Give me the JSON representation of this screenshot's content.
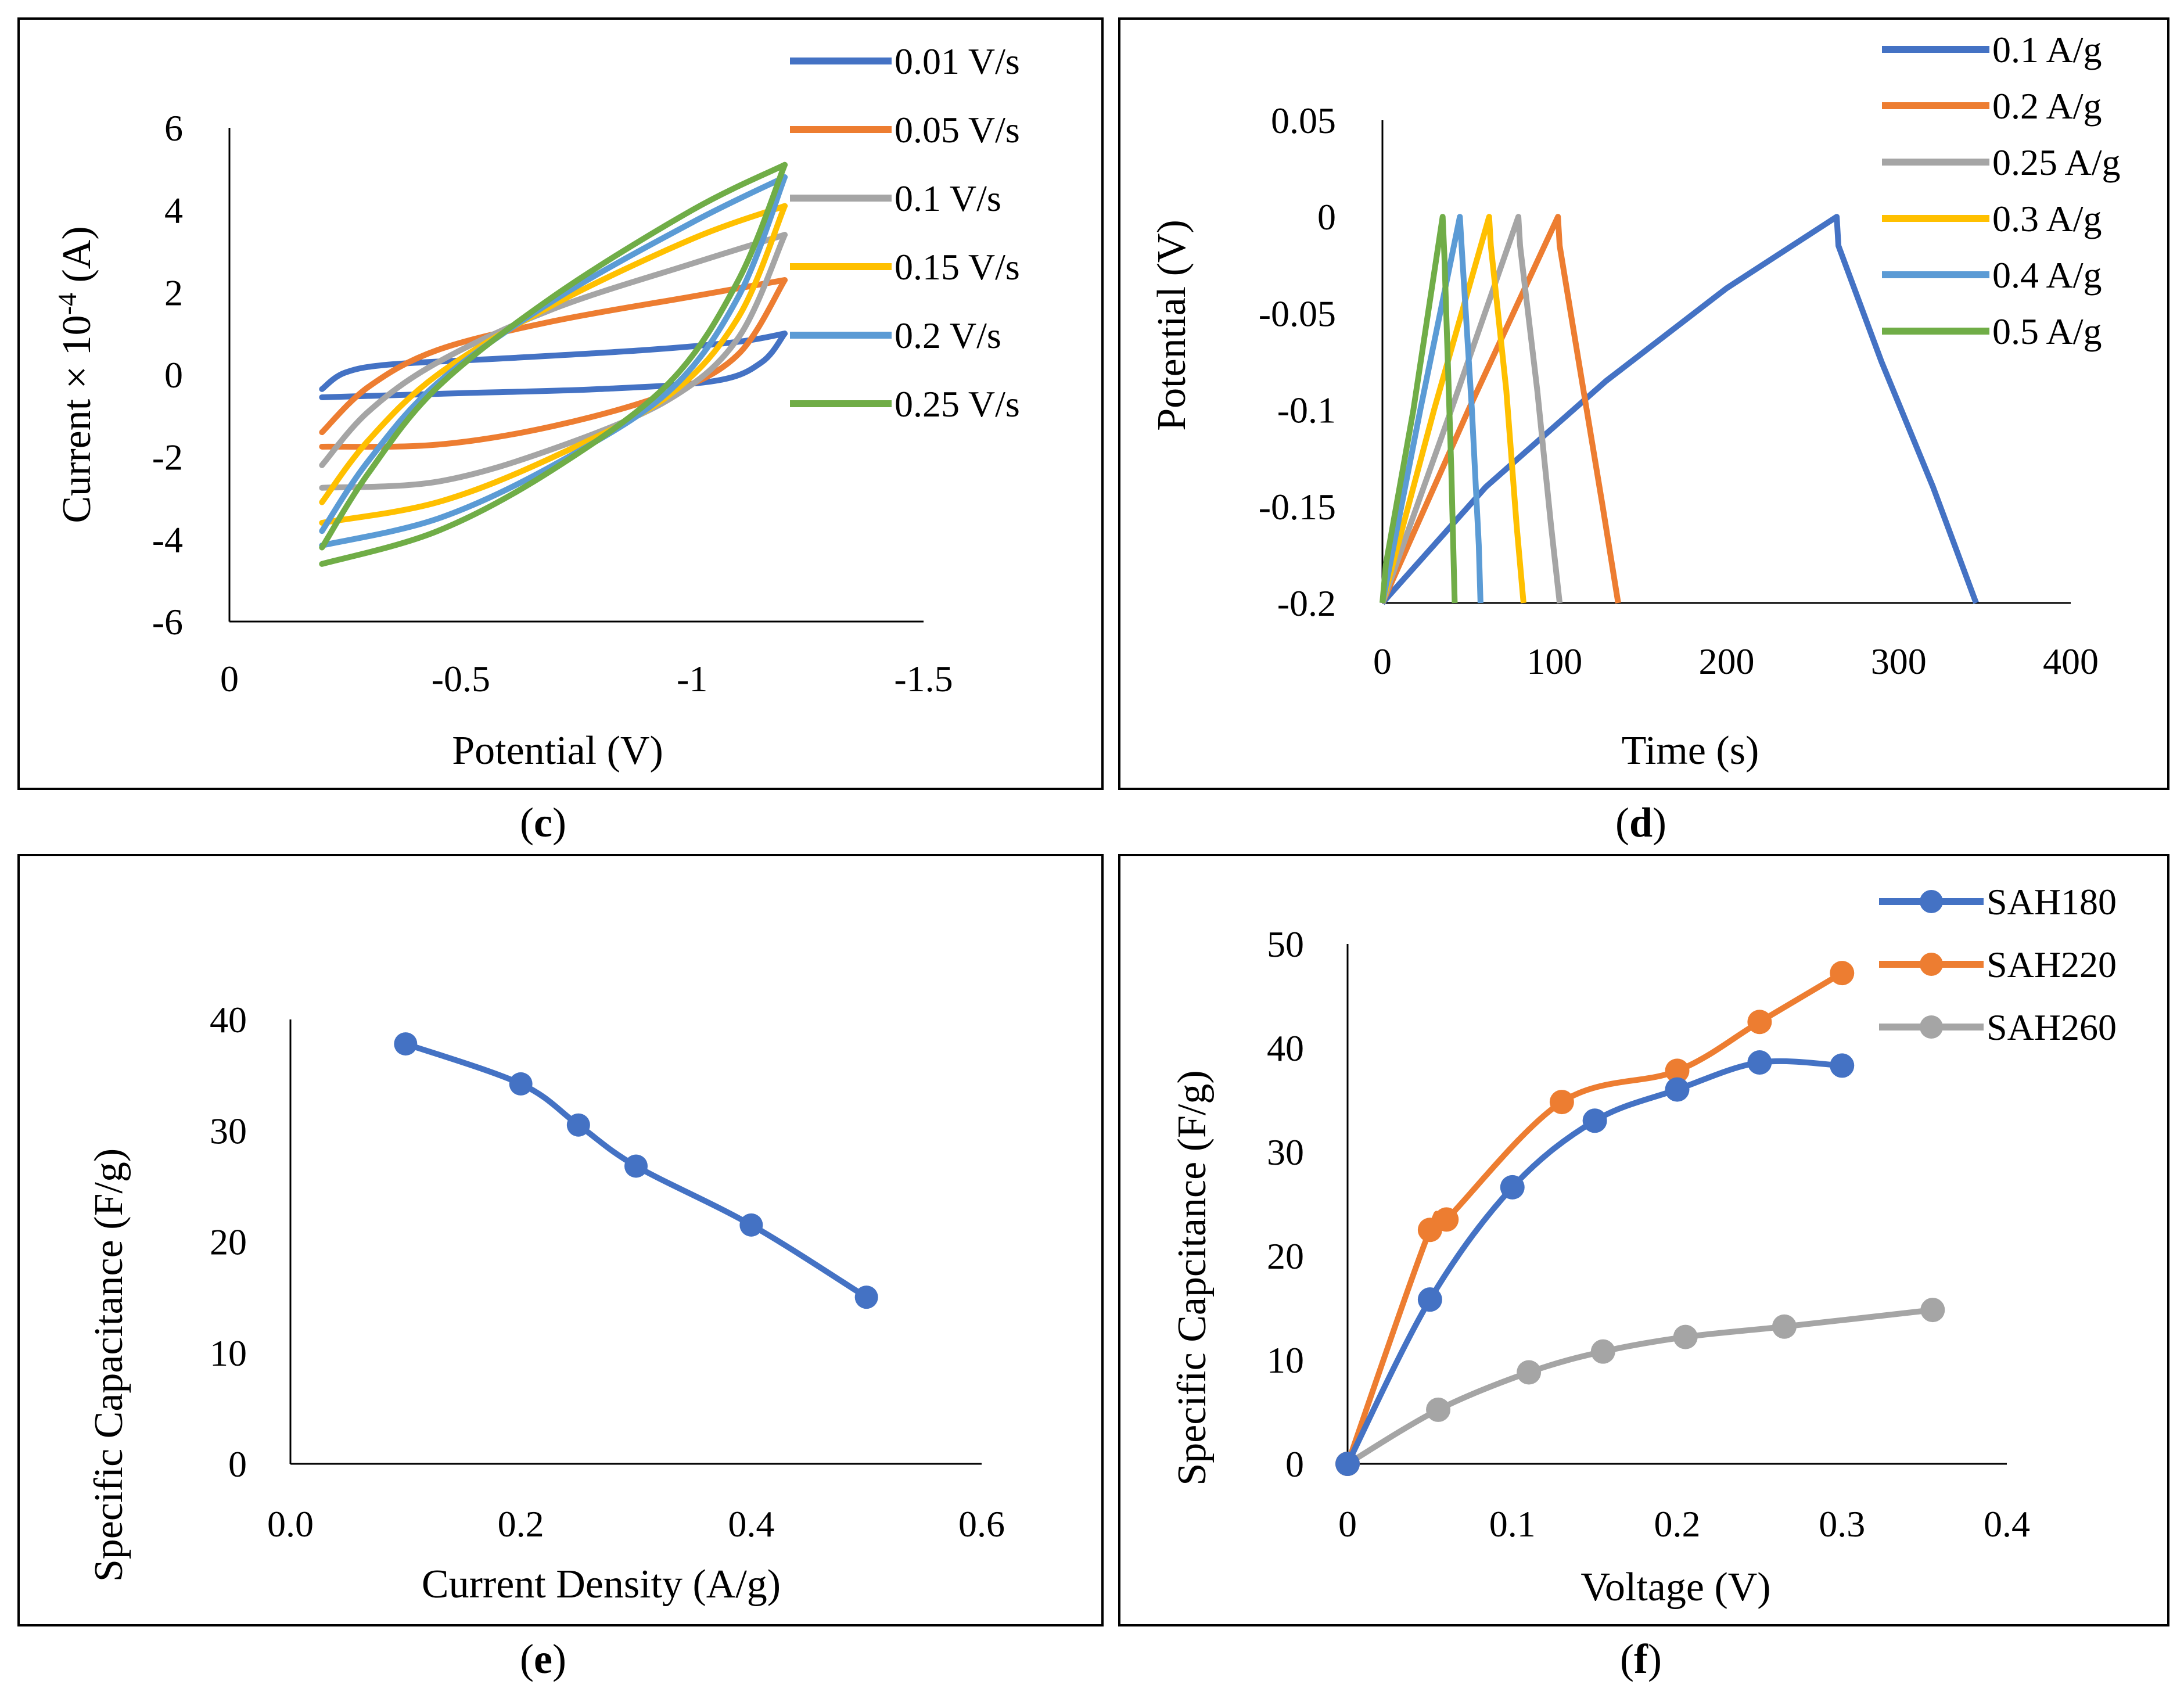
{
  "figure": {
    "captions": [
      {
        "open": "(",
        "letter": "c",
        "close": ")"
      },
      {
        "open": "(",
        "letter": "d",
        "close": ")"
      },
      {
        "open": "(",
        "letter": "e",
        "close": ")"
      },
      {
        "open": "(",
        "letter": "f",
        "close": ")"
      }
    ]
  },
  "chart_data": [
    {
      "id": "c",
      "type": "line",
      "title": "",
      "xlabel": "Potential (V)",
      "ylabel_main": "Current × 10",
      "ylabel_sup": "-4",
      "ylabel_unit": " (A)",
      "xlim": [
        0,
        -1.5
      ],
      "ylim": [
        -6,
        6
      ],
      "xticks": [
        0,
        -0.5,
        -1,
        -1.5
      ],
      "xtick_labels": [
        "0",
        "-0.5",
        "-1",
        "-1.5"
      ],
      "yticks": [
        -6,
        -4,
        -2,
        0,
        2,
        4,
        6
      ],
      "ytick_labels": [
        "-6",
        "-4",
        "-2",
        "0",
        "2",
        "4",
        "6"
      ],
      "legend_position": "top-right",
      "series": [
        {
          "name": "0.01 V/s",
          "color": "#4472C4",
          "upper": [
            [
              -0.2,
              -0.35
            ],
            [
              -0.25,
              0.05
            ],
            [
              -0.35,
              0.25
            ],
            [
              -0.6,
              0.4
            ],
            [
              -0.9,
              0.6
            ],
            [
              -1.1,
              0.8
            ],
            [
              -1.2,
              1.0
            ]
          ],
          "lower": [
            [
              -0.2,
              -0.55
            ],
            [
              -0.5,
              -0.45
            ],
            [
              -0.8,
              -0.35
            ],
            [
              -1.05,
              -0.15
            ],
            [
              -1.15,
              0.3
            ],
            [
              -1.2,
              1.0
            ]
          ]
        },
        {
          "name": "0.05 V/s",
          "color": "#ED7D31",
          "upper": [
            [
              -0.2,
              -1.4
            ],
            [
              -0.3,
              -0.3
            ],
            [
              -0.45,
              0.6
            ],
            [
              -0.7,
              1.3
            ],
            [
              -1.0,
              1.9
            ],
            [
              -1.2,
              2.3
            ]
          ],
          "lower": [
            [
              -0.2,
              -1.75
            ],
            [
              -0.45,
              -1.7
            ],
            [
              -0.7,
              -1.25
            ],
            [
              -0.95,
              -0.45
            ],
            [
              -1.1,
              0.5
            ],
            [
              -1.2,
              2.3
            ]
          ]
        },
        {
          "name": "0.1 V/s",
          "color": "#A5A5A5",
          "upper": [
            [
              -0.2,
              -2.2
            ],
            [
              -0.3,
              -0.9
            ],
            [
              -0.45,
              0.3
            ],
            [
              -0.7,
              1.6
            ],
            [
              -1.0,
              2.7
            ],
            [
              -1.2,
              3.4
            ]
          ],
          "lower": [
            [
              -0.2,
              -2.75
            ],
            [
              -0.45,
              -2.6
            ],
            [
              -0.7,
              -1.8
            ],
            [
              -0.95,
              -0.6
            ],
            [
              -1.1,
              0.9
            ],
            [
              -1.2,
              3.4
            ]
          ]
        },
        {
          "name": "0.15 V/s",
          "color": "#FFC000",
          "upper": [
            [
              -0.2,
              -3.1
            ],
            [
              -0.3,
              -1.6
            ],
            [
              -0.45,
              0.0
            ],
            [
              -0.7,
              1.7
            ],
            [
              -1.0,
              3.3
            ],
            [
              -1.2,
              4.1
            ]
          ],
          "lower": [
            [
              -0.2,
              -3.6
            ],
            [
              -0.45,
              -3.1
            ],
            [
              -0.7,
              -2.0
            ],
            [
              -0.95,
              -0.5
            ],
            [
              -1.1,
              1.4
            ],
            [
              -1.2,
              4.1
            ]
          ]
        },
        {
          "name": "0.2 V/s",
          "color": "#5B9BD5",
          "upper": [
            [
              -0.2,
              -3.8
            ],
            [
              -0.3,
              -2.1
            ],
            [
              -0.45,
              -0.2
            ],
            [
              -0.7,
              1.8
            ],
            [
              -1.0,
              3.7
            ],
            [
              -1.2,
              4.8
            ]
          ],
          "lower": [
            [
              -0.2,
              -4.15
            ],
            [
              -0.45,
              -3.5
            ],
            [
              -0.7,
              -2.2
            ],
            [
              -0.95,
              -0.4
            ],
            [
              -1.1,
              1.9
            ],
            [
              -1.2,
              4.8
            ]
          ]
        },
        {
          "name": "0.25 V/s",
          "color": "#70AD47",
          "upper": [
            [
              -0.2,
              -4.2
            ],
            [
              -0.3,
              -2.4
            ],
            [
              -0.45,
              -0.3
            ],
            [
              -0.7,
              1.9
            ],
            [
              -1.0,
              4.0
            ],
            [
              -1.2,
              5.1
            ]
          ],
          "lower": [
            [
              -0.2,
              -4.6
            ],
            [
              -0.45,
              -3.8
            ],
            [
              -0.7,
              -2.3
            ],
            [
              -0.95,
              -0.2
            ],
            [
              -1.1,
              2.3
            ],
            [
              -1.2,
              5.1
            ]
          ]
        }
      ]
    },
    {
      "id": "d",
      "type": "line",
      "title": "",
      "xlabel": "Time (s)",
      "ylabel": "Potential (V)",
      "xlim": [
        0,
        400
      ],
      "ylim": [
        -0.2,
        0.05
      ],
      "xticks": [
        0,
        100,
        200,
        300,
        400
      ],
      "xtick_labels": [
        "0",
        "100",
        "200",
        "300",
        "400"
      ],
      "yticks": [
        -0.2,
        -0.15,
        -0.1,
        -0.05,
        0,
        0.05
      ],
      "ytick_labels": [
        "-0.2",
        "-0.15",
        "-0.1",
        "-0.05",
        "0",
        "0.05"
      ],
      "legend_position": "top-right",
      "series": [
        {
          "name": "0.1 A/g",
          "color": "#4472C4",
          "x": [
            0,
            60,
            130,
            200,
            264,
            265,
            290,
            320,
            345
          ],
          "y": [
            -0.2,
            -0.14,
            -0.085,
            -0.037,
            0,
            -0.015,
            -0.075,
            -0.14,
            -0.2
          ]
        },
        {
          "name": "0.2 A/g",
          "color": "#ED7D31",
          "x": [
            0,
            50,
            102,
            103,
            115,
            128,
            137
          ],
          "y": [
            -0.2,
            -0.1,
            0,
            -0.015,
            -0.08,
            -0.15,
            -0.2
          ]
        },
        {
          "name": "0.25 A/g",
          "color": "#A5A5A5",
          "x": [
            0,
            40,
            79,
            80,
            90,
            98,
            103
          ],
          "y": [
            -0.2,
            -0.1,
            0,
            -0.015,
            -0.09,
            -0.16,
            -0.2
          ]
        },
        {
          "name": "0.3 A/g",
          "color": "#FFC000",
          "x": [
            0,
            30,
            62,
            63,
            72,
            78,
            82
          ],
          "y": [
            -0.2,
            -0.1,
            0,
            -0.015,
            -0.09,
            -0.16,
            -0.2
          ]
        },
        {
          "name": "0.4 A/g",
          "color": "#5B9BD5",
          "x": [
            0,
            22,
            45,
            46,
            52,
            56,
            57
          ],
          "y": [
            -0.2,
            -0.1,
            0,
            -0.015,
            -0.1,
            -0.17,
            -0.2
          ]
        },
        {
          "name": "0.5 A/g",
          "color": "#70AD47",
          "x": [
            0,
            2,
            18,
            35,
            36,
            40,
            42
          ],
          "y": [
            -0.2,
            -0.18,
            -0.1,
            0,
            -0.02,
            -0.13,
            -0.2
          ]
        }
      ]
    },
    {
      "id": "e",
      "type": "line",
      "title": "",
      "xlabel": "Current Density (A/g)",
      "ylabel": "Specific Capacitance (F/g)",
      "xlim": [
        0,
        0.6
      ],
      "ylim": [
        0,
        40
      ],
      "xticks": [
        0,
        0.1,
        0.2,
        0.3,
        0.4,
        0.5,
        0.6
      ],
      "xtick_labels": [
        "0.0",
        "",
        "0.2",
        "",
        "0.4",
        "",
        "0.6"
      ],
      "yticks": [
        0,
        10,
        20,
        30,
        40
      ],
      "ytick_labels": [
        "0",
        "10",
        "20",
        "30",
        "40"
      ],
      "series": [
        {
          "name": "",
          "color": "#4472C4",
          "x": [
            0.1,
            0.2,
            0.25,
            0.3,
            0.4,
            0.5
          ],
          "y": [
            37.8,
            34.2,
            30.5,
            26.8,
            21.5,
            15.0
          ]
        }
      ]
    },
    {
      "id": "f",
      "type": "line",
      "title": "",
      "xlabel": "Voltage (V)",
      "ylabel": "Specific Capcitance (F/g)",
      "xlim": [
        0,
        0.4
      ],
      "ylim": [
        0,
        50
      ],
      "xticks": [
        0,
        0.1,
        0.2,
        0.3,
        0.4
      ],
      "xtick_labels": [
        "0",
        "0.1",
        "0.2",
        "0.3",
        "0.4"
      ],
      "yticks": [
        0,
        10,
        20,
        30,
        40,
        50
      ],
      "ytick_labels": [
        "0",
        "10",
        "20",
        "30",
        "40",
        "50"
      ],
      "legend_position": "top-right",
      "series": [
        {
          "name": "SAH180",
          "color": "#4472C4",
          "x": [
            0,
            0.05,
            0.1,
            0.15,
            0.2,
            0.25,
            0.3
          ],
          "y": [
            0,
            15.8,
            26.6,
            33.0,
            36.0,
            38.6,
            38.3
          ]
        },
        {
          "name": "SAH220",
          "color": "#ED7D31",
          "x": [
            0,
            0.05,
            0.06,
            0.13,
            0.2,
            0.25,
            0.3
          ],
          "y": [
            0,
            22.5,
            23.5,
            34.8,
            37.8,
            42.5,
            47.2
          ]
        },
        {
          "name": "SAH260",
          "color": "#A5A5A5",
          "x": [
            0,
            0.055,
            0.11,
            0.155,
            0.205,
            0.265,
            0.355
          ],
          "y": [
            0,
            5.2,
            8.8,
            10.8,
            12.2,
            13.2,
            14.8
          ]
        }
      ]
    }
  ]
}
